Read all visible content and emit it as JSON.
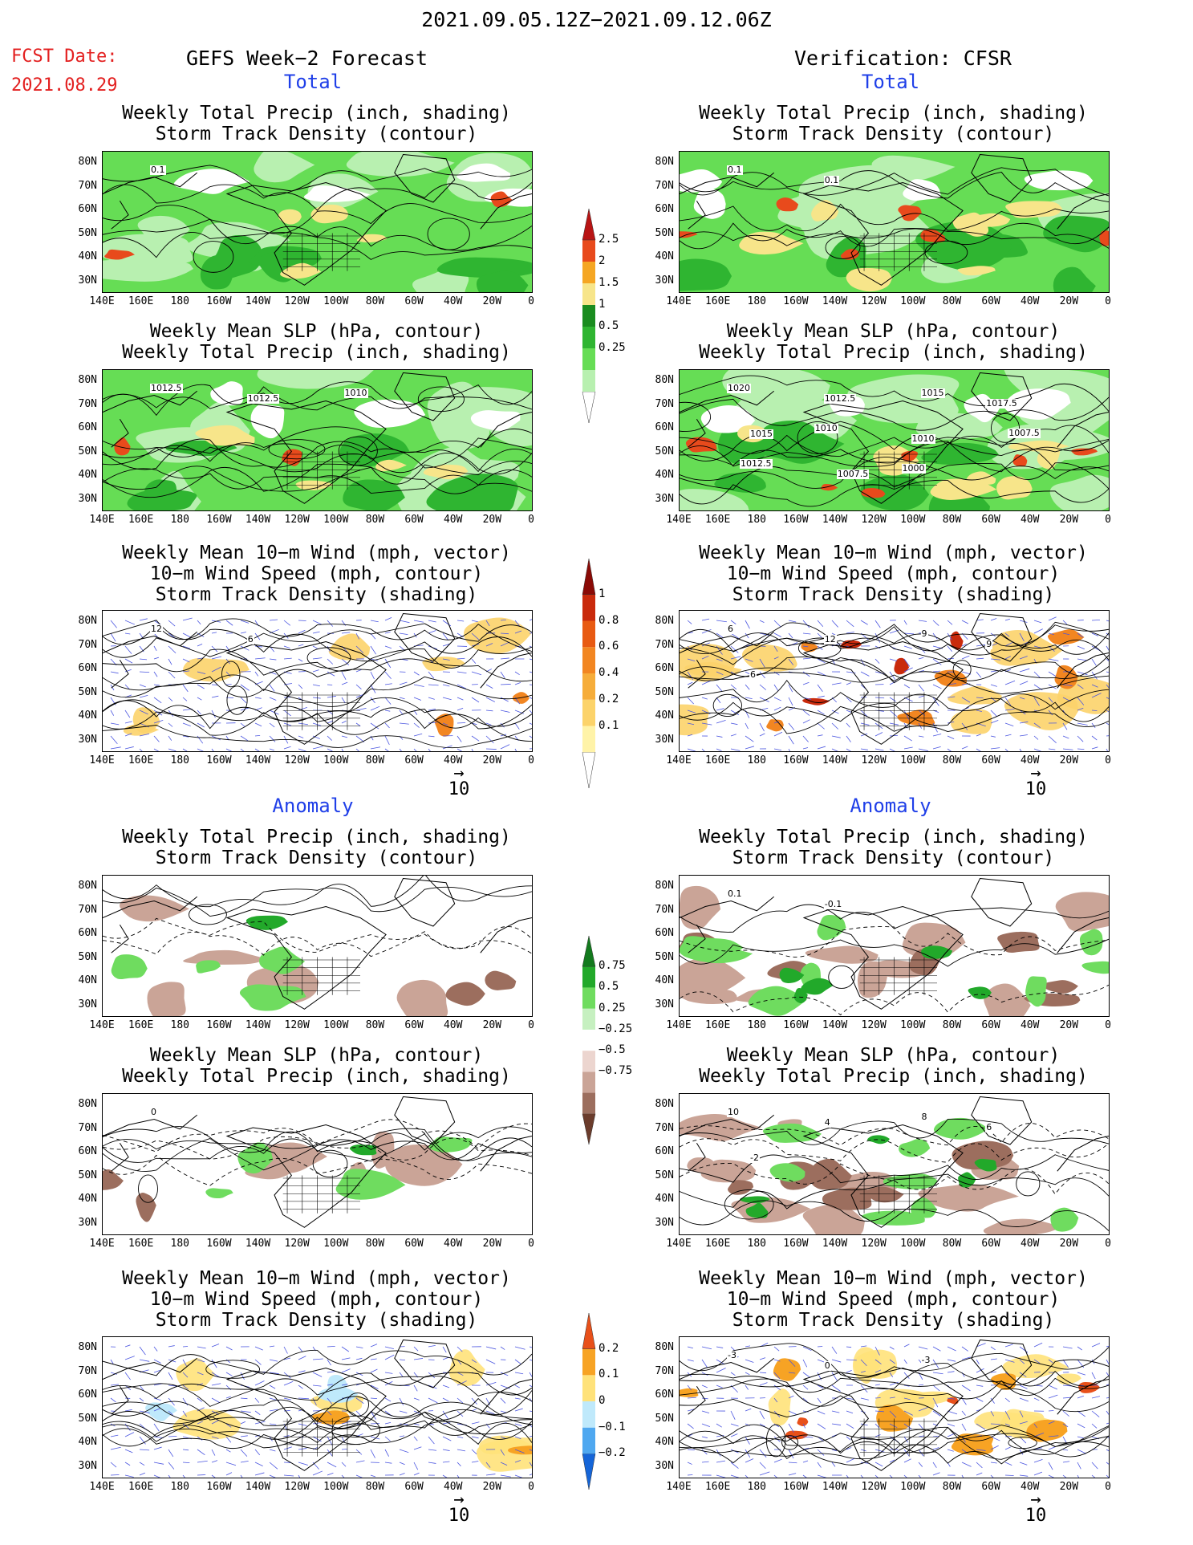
{
  "header": {
    "period": "2021.09.05.12Z−2021.09.12.06Z",
    "fcst_label": "FCST Date:",
    "fcst_date": "2021.08.29",
    "left_title": "GEFS Week−2 Forecast",
    "right_title": "Verification: CFSR"
  },
  "sections": {
    "total": "Total",
    "anomaly": "Anomaly"
  },
  "panel_titles": {
    "precip_track": [
      "Weekly Total Precip (inch, shading)",
      "Storm Track Density (contour)"
    ],
    "slp_precip": [
      "Weekly Mean SLP (hPa, contour)",
      "Weekly Total Precip (inch, shading)"
    ],
    "wind_track": [
      "Weekly Mean 10−m Wind (mph, vector)",
      "10−m Wind Speed (mph, contour)",
      "Storm Track Density (shading)"
    ]
  },
  "axes": {
    "lat_labels": [
      "80N",
      "70N",
      "60N",
      "50N",
      "40N",
      "30N"
    ],
    "lon_labels": [
      "140E",
      "160E",
      "180",
      "160W",
      "140W",
      "120W",
      "100W",
      "80W",
      "60W",
      "40W",
      "20W",
      "0"
    ]
  },
  "vector_ref": "10",
  "contour_labels": {
    "fcst_precip": [
      "0.1"
    ],
    "fcst_slp": [
      "1012.5",
      "1012.5",
      "1010"
    ],
    "obs_precip": [
      "0.1",
      "0.1"
    ],
    "obs_slp": [
      "1020",
      "1012.5",
      "1015",
      "1017.5",
      "1015",
      "1010",
      "1010",
      "1007.5",
      "1012.5",
      "1007.5",
      "1000"
    ],
    "obs_wind": [
      "6",
      "12",
      "9",
      "9",
      "6"
    ],
    "fcst_wind": [
      "12",
      "6"
    ],
    "anom_obs_precip": [
      "0.1",
      "-0.1"
    ],
    "anom_fcst_slp": [
      "0"
    ],
    "anom_obs_slp": [
      "10",
      "4",
      "8",
      "6",
      "-2"
    ],
    "anom_obs_wind": [
      "-3",
      "0",
      "-3"
    ]
  },
  "colorbars": {
    "precip_total": {
      "labels": [
        "2.5",
        "2",
        "1.5",
        "1",
        "0.5",
        "0.25"
      ],
      "colors": [
        "#ffffff",
        "#b8f0b0",
        "#66dd55",
        "#2fb531",
        "#1a8c1f",
        "#f7e58a",
        "#f5a623",
        "#e84a1c",
        "#b81414"
      ]
    },
    "track_total": {
      "labels": [
        "1",
        "0.8",
        "0.6",
        "0.4",
        "0.2",
        "0.1"
      ],
      "colors": [
        "#ffffff",
        "#fff3a8",
        "#fcd36a",
        "#f6ad3a",
        "#f28621",
        "#e85a12",
        "#c92a0c",
        "#8a0a06"
      ]
    },
    "precip_anom": {
      "labels": [
        "0.75",
        "0.5",
        "0.25",
        "−0.25",
        "−0.5",
        "−0.75"
      ],
      "colors": [
        "#6b3c2c",
        "#9c6e5e",
        "#caa497",
        "#ecd5cf",
        "#ffffff",
        "#c6f0c0",
        "#6fdc5f",
        "#22a92a",
        "#137a1e"
      ]
    },
    "track_anom": {
      "labels": [
        "0.2",
        "0.1",
        "0",
        "−0.1",
        "−0.2"
      ],
      "colors": [
        "#1565d8",
        "#4fa8f0",
        "#bfe9fb",
        "#ffe27a",
        "#f7a324",
        "#e8501a"
      ]
    }
  }
}
